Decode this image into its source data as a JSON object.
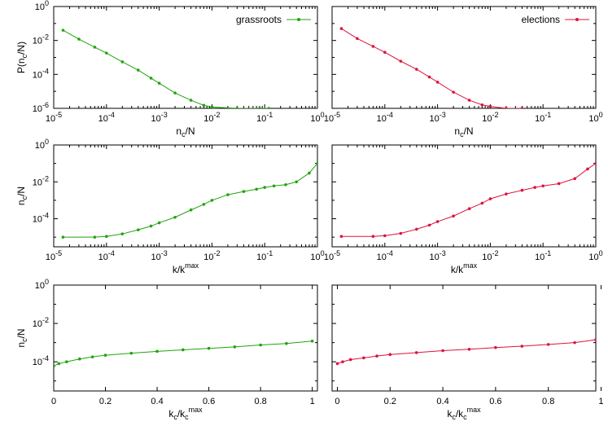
{
  "colors": {
    "grassroots": "#21a30d",
    "elections": "#dc143c"
  },
  "chart_data": [
    {
      "type": "line",
      "panel": "row1-left",
      "xscale": "log",
      "yscale": "log",
      "xlim": [
        1e-05,
        1
      ],
      "ylim": [
        1e-06,
        1
      ],
      "xlabel_main": "n",
      "xlabel_sub": "c",
      "xlabel_rest": "/N",
      "ylabel_main": "P(n",
      "ylabel_sub": "c",
      "ylabel_rest": "/N)",
      "legend": "grassroots",
      "legend_position": "top-right",
      "series": [
        {
          "name": "grassroots",
          "color": "#21a30d",
          "points": [
            [
              1.5e-05,
              0.04
            ],
            [
              3e-05,
              0.012
            ],
            [
              6e-05,
              0.004
            ],
            [
              0.0001,
              0.0018
            ],
            [
              0.0002,
              0.00055
            ],
            [
              0.0004,
              0.00018
            ],
            [
              0.0007,
              6e-05
            ],
            [
              0.001,
              3e-05
            ],
            [
              0.002,
              8e-06
            ],
            [
              0.004,
              3e-06
            ],
            [
              0.007,
              1.5e-06
            ],
            [
              0.01,
              1.2e-06
            ],
            [
              0.03,
              1e-06
            ],
            [
              0.08,
              1e-06
            ],
            [
              0.12,
              1e-06
            ]
          ]
        }
      ],
      "xticks": [
        {
          "b": "10",
          "e": "-5"
        },
        {
          "b": "10",
          "e": "-4"
        },
        {
          "b": "10",
          "e": "-3"
        },
        {
          "b": "10",
          "e": "-2"
        },
        {
          "b": "10",
          "e": "-1"
        },
        {
          "b": "10",
          "e": "0"
        }
      ],
      "yticks": [
        {
          "b": "10",
          "e": "-6"
        },
        {
          "b": "10",
          "e": "-4"
        },
        {
          "b": "10",
          "e": "-2"
        },
        {
          "b": "10",
          "e": "0"
        }
      ]
    },
    {
      "type": "line",
      "panel": "row1-right",
      "xscale": "log",
      "yscale": "log",
      "xlim": [
        1e-05,
        1
      ],
      "ylim": [
        1e-06,
        1
      ],
      "xlabel_main": "n",
      "xlabel_sub": "c",
      "xlabel_rest": "/N",
      "legend": "elections",
      "legend_position": "top-right",
      "series": [
        {
          "name": "elections",
          "color": "#dc143c",
          "points": [
            [
              1.5e-05,
              0.05
            ],
            [
              3e-05,
              0.013
            ],
            [
              6e-05,
              0.0045
            ],
            [
              0.0001,
              0.002
            ],
            [
              0.0002,
              0.0006
            ],
            [
              0.0004,
              0.0002
            ],
            [
              0.0007,
              7e-05
            ],
            [
              0.001,
              3.5e-05
            ],
            [
              0.002,
              9e-06
            ],
            [
              0.004,
              3e-06
            ],
            [
              0.007,
              1.6e-06
            ],
            [
              0.01,
              1.3e-06
            ],
            [
              0.02,
              1e-06
            ],
            [
              0.04,
              1e-06
            ]
          ]
        }
      ],
      "xticks": [
        {
          "b": "10",
          "e": "-5"
        },
        {
          "b": "10",
          "e": "-4"
        },
        {
          "b": "10",
          "e": "-3"
        },
        {
          "b": "10",
          "e": "-2"
        },
        {
          "b": "10",
          "e": "-1"
        },
        {
          "b": "10",
          "e": "0"
        }
      ],
      "yticks": []
    },
    {
      "type": "line",
      "panel": "row2-left",
      "xscale": "log",
      "yscale": "log",
      "xlim": [
        1e-05,
        1
      ],
      "ylim": [
        3e-06,
        1
      ],
      "xlabel_main": "k/k",
      "xlabel_sup": "max",
      "ylabel_main": "n",
      "ylabel_sub": "c",
      "ylabel_rest": "/N",
      "series": [
        {
          "name": "grassroots",
          "color": "#21a30d",
          "points": [
            [
              1.5e-05,
              1e-05
            ],
            [
              6e-05,
              1e-05
            ],
            [
              0.0001,
              1.1e-05
            ],
            [
              0.0002,
              1.5e-05
            ],
            [
              0.0004,
              2.5e-05
            ],
            [
              0.0007,
              4e-05
            ],
            [
              0.001,
              6e-05
            ],
            [
              0.002,
              0.00012
            ],
            [
              0.004,
              0.0003
            ],
            [
              0.007,
              0.0006
            ],
            [
              0.01,
              0.001
            ],
            [
              0.02,
              0.002
            ],
            [
              0.04,
              0.003
            ],
            [
              0.07,
              0.004
            ],
            [
              0.1,
              0.005
            ],
            [
              0.15,
              0.006
            ],
            [
              0.25,
              0.007
            ],
            [
              0.4,
              0.01
            ],
            [
              0.7,
              0.03
            ],
            [
              1,
              0.1
            ]
          ]
        }
      ],
      "xticks": [
        {
          "b": "10",
          "e": "-5"
        },
        {
          "b": "10",
          "e": "-4"
        },
        {
          "b": "10",
          "e": "-3"
        },
        {
          "b": "10",
          "e": "-2"
        },
        {
          "b": "10",
          "e": "-1"
        },
        {
          "b": "10",
          "e": "0"
        }
      ],
      "yticks": [
        {
          "b": "10",
          "e": "-4"
        },
        {
          "b": "10",
          "e": "-2"
        },
        {
          "b": "10",
          "e": "0"
        }
      ]
    },
    {
      "type": "line",
      "panel": "row2-right",
      "xscale": "log",
      "yscale": "log",
      "xlim": [
        1e-05,
        1
      ],
      "ylim": [
        3e-06,
        1
      ],
      "xlabel_main": "k/k",
      "xlabel_sup": "max",
      "series": [
        {
          "name": "elections",
          "color": "#dc143c",
          "points": [
            [
              1.5e-05,
              1.1e-05
            ],
            [
              6e-05,
              1.1e-05
            ],
            [
              0.0001,
              1.2e-05
            ],
            [
              0.0002,
              1.6e-05
            ],
            [
              0.0004,
              2.7e-05
            ],
            [
              0.0007,
              4.5e-05
            ],
            [
              0.001,
              7e-05
            ],
            [
              0.002,
              0.00014
            ],
            [
              0.004,
              0.00035
            ],
            [
              0.007,
              0.0007
            ],
            [
              0.01,
              0.0012
            ],
            [
              0.02,
              0.0022
            ],
            [
              0.04,
              0.0035
            ],
            [
              0.07,
              0.005
            ],
            [
              0.1,
              0.006
            ],
            [
              0.2,
              0.008
            ],
            [
              0.4,
              0.015
            ],
            [
              0.7,
              0.05
            ],
            [
              1,
              0.1
            ]
          ]
        }
      ],
      "xticks": [
        {
          "b": "10",
          "e": "-5"
        },
        {
          "b": "10",
          "e": "-4"
        },
        {
          "b": "10",
          "e": "-3"
        },
        {
          "b": "10",
          "e": "-2"
        },
        {
          "b": "10",
          "e": "-1"
        },
        {
          "b": "10",
          "e": "0"
        }
      ],
      "yticks": []
    },
    {
      "type": "line",
      "panel": "row3-left",
      "xscale": "linear",
      "yscale": "log",
      "xlim": [
        0,
        1.02
      ],
      "ylim": [
        3e-06,
        1
      ],
      "xlabel_main": "k",
      "xlabel_sub": "c",
      "xlabel_rest": "/k",
      "xlabel_sub2": "c",
      "xlabel_sup": "max",
      "ylabel_main": "n",
      "ylabel_sub": "c",
      "ylabel_rest": "/N",
      "series": [
        {
          "name": "grassroots",
          "color": "#21a30d",
          "points": [
            [
              0.0,
              6e-05
            ],
            [
              0.02,
              8e-05
            ],
            [
              0.05,
              0.0001
            ],
            [
              0.1,
              0.00014
            ],
            [
              0.15,
              0.00018
            ],
            [
              0.2,
              0.00022
            ],
            [
              0.3,
              0.00028
            ],
            [
              0.4,
              0.00035
            ],
            [
              0.5,
              0.00042
            ],
            [
              0.6,
              0.0005
            ],
            [
              0.7,
              0.0006
            ],
            [
              0.8,
              0.00075
            ],
            [
              0.9,
              0.0009
            ],
            [
              1.0,
              0.0012
            ]
          ]
        }
      ],
      "xticks": [
        "0",
        "0.2",
        "0.4",
        "0.6",
        "0.8",
        "1"
      ],
      "yticks": [
        {
          "b": "10",
          "e": "-4"
        },
        {
          "b": "10",
          "e": "-2"
        },
        {
          "b": "10",
          "e": "0"
        }
      ]
    },
    {
      "type": "line",
      "panel": "row3-right",
      "xscale": "linear",
      "yscale": "log",
      "xlim": [
        -0.02,
        0.98
      ],
      "ylim": [
        3e-06,
        1
      ],
      "xlabel_main": "k",
      "xlabel_sub": "c",
      "xlabel_rest": "/k",
      "xlabel_sub2": "c",
      "xlabel_sup": "max",
      "series": [
        {
          "name": "elections",
          "color": "#dc143c",
          "points": [
            [
              0.0,
              8e-05
            ],
            [
              0.02,
              0.0001
            ],
            [
              0.05,
              0.00013
            ],
            [
              0.1,
              0.00016
            ],
            [
              0.15,
              0.0002
            ],
            [
              0.2,
              0.00024
            ],
            [
              0.3,
              0.0003
            ],
            [
              0.4,
              0.00038
            ],
            [
              0.5,
              0.00045
            ],
            [
              0.6,
              0.00055
            ],
            [
              0.7,
              0.00065
            ],
            [
              0.8,
              0.0008
            ],
            [
              0.9,
              0.001
            ],
            [
              0.98,
              0.0014
            ]
          ]
        }
      ],
      "xticks": [
        "0",
        "0.2",
        "0.4",
        "0.6",
        "0.8",
        "1"
      ],
      "yticks": []
    }
  ]
}
